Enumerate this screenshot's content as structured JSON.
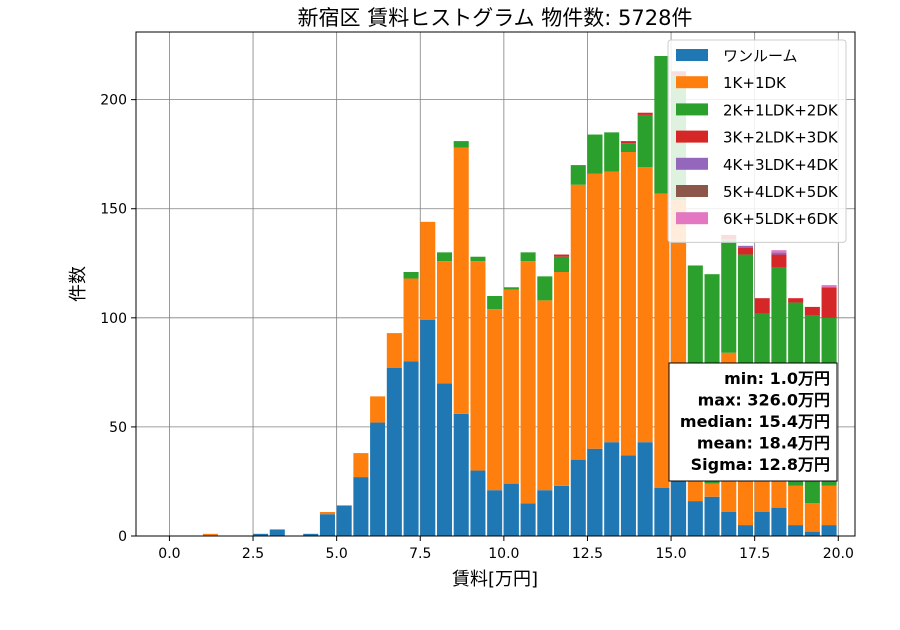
{
  "chart_data": {
    "type": "bar",
    "stacked": true,
    "title": "新宿区 賃料ヒストグラム 物件数: 5728件",
    "xlabel": "賃料[万円]",
    "ylabel": "件数",
    "xlim": [
      -1.0,
      20.5
    ],
    "ylim": [
      0,
      231
    ],
    "xticks": [
      "0.0",
      "2.5",
      "5.0",
      "7.5",
      "10.0",
      "12.5",
      "15.0",
      "17.5",
      "20.0"
    ],
    "yticks": [
      "0",
      "50",
      "100",
      "150",
      "200"
    ],
    "grid": true,
    "legend_position": "top-right",
    "bin_width": 0.5,
    "x": [
      1.0,
      2.5,
      3.0,
      4.0,
      4.5,
      5.0,
      5.5,
      6.0,
      6.5,
      7.0,
      7.5,
      8.0,
      8.5,
      9.0,
      9.5,
      10.0,
      10.5,
      11.0,
      11.5,
      12.0,
      12.5,
      13.0,
      13.5,
      14.0,
      14.5,
      15.0,
      15.5,
      16.0,
      16.5,
      17.0,
      17.5,
      18.0,
      18.5,
      19.0,
      19.5
    ],
    "series": [
      {
        "name": "ワンルーム",
        "color": "#1f77b4",
        "values": [
          0,
          1,
          3,
          1,
          10,
          14,
          27,
          52,
          77,
          80,
          99,
          70,
          56,
          30,
          21,
          24,
          15,
          21,
          23,
          35,
          40,
          43,
          37,
          43,
          22,
          28,
          16,
          18,
          11,
          5,
          11,
          13,
          5,
          2,
          5
        ]
      },
      {
        "name": "1K+1DK",
        "color": "#ff7f0e",
        "values": [
          1,
          0,
          0,
          0,
          1,
          0,
          11,
          12,
          16,
          38,
          45,
          56,
          122,
          96,
          83,
          89,
          111,
          87,
          98,
          126,
          126,
          124,
          139,
          126,
          135,
          126,
          24,
          6,
          73,
          40,
          30,
          16,
          18,
          13,
          18
        ]
      },
      {
        "name": "2K+1LDK+2DK",
        "color": "#2ca02c",
        "values": [
          0,
          0,
          0,
          0,
          0,
          0,
          0,
          0,
          0,
          3,
          0,
          4,
          3,
          2,
          6,
          1,
          4,
          11,
          7,
          9,
          18,
          18,
          4,
          24,
          63,
          57,
          84,
          96,
          52,
          84,
          61,
          94,
          84,
          86,
          77
        ]
      },
      {
        "name": "3K+2LDK+3DK",
        "color": "#d62728",
        "values": [
          0,
          0,
          0,
          0,
          0,
          0,
          0,
          0,
          0,
          0,
          0,
          0,
          0,
          0,
          0,
          0,
          0,
          0,
          1,
          0,
          0,
          0,
          1,
          1,
          0,
          2,
          0,
          0,
          2,
          3,
          7,
          6,
          2,
          4,
          14
        ]
      },
      {
        "name": "4K+3LDK+4DK",
        "color": "#9467bd",
        "values": [
          0,
          0,
          0,
          0,
          0,
          0,
          0,
          0,
          0,
          0,
          0,
          0,
          0,
          0,
          0,
          0,
          0,
          0,
          0,
          0,
          0,
          0,
          0,
          0,
          0,
          0,
          0,
          0,
          0,
          1,
          0,
          1,
          0,
          0,
          0
        ]
      },
      {
        "name": "5K+4LDK+5DK",
        "color": "#8c564b",
        "values": [
          0,
          0,
          0,
          0,
          0,
          0,
          0,
          0,
          0,
          0,
          0,
          0,
          0,
          0,
          0,
          0,
          0,
          0,
          0,
          0,
          0,
          0,
          0,
          0,
          0,
          0,
          0,
          0,
          0,
          0,
          0,
          0,
          0,
          0,
          0
        ]
      },
      {
        "name": "6K+5LDK+6DK",
        "color": "#e377c2",
        "values": [
          0,
          0,
          0,
          0,
          0,
          0,
          0,
          0,
          0,
          0,
          0,
          0,
          0,
          0,
          0,
          0,
          0,
          0,
          0,
          0,
          0,
          0,
          0,
          0,
          0,
          0,
          0,
          0,
          0,
          0,
          0,
          1,
          0,
          0,
          1
        ]
      }
    ],
    "stats": [
      "min: 1.0万円",
      "max: 326.0万円",
      "median: 15.4万円",
      "mean: 18.4万円",
      "Sigma: 12.8万円"
    ]
  }
}
